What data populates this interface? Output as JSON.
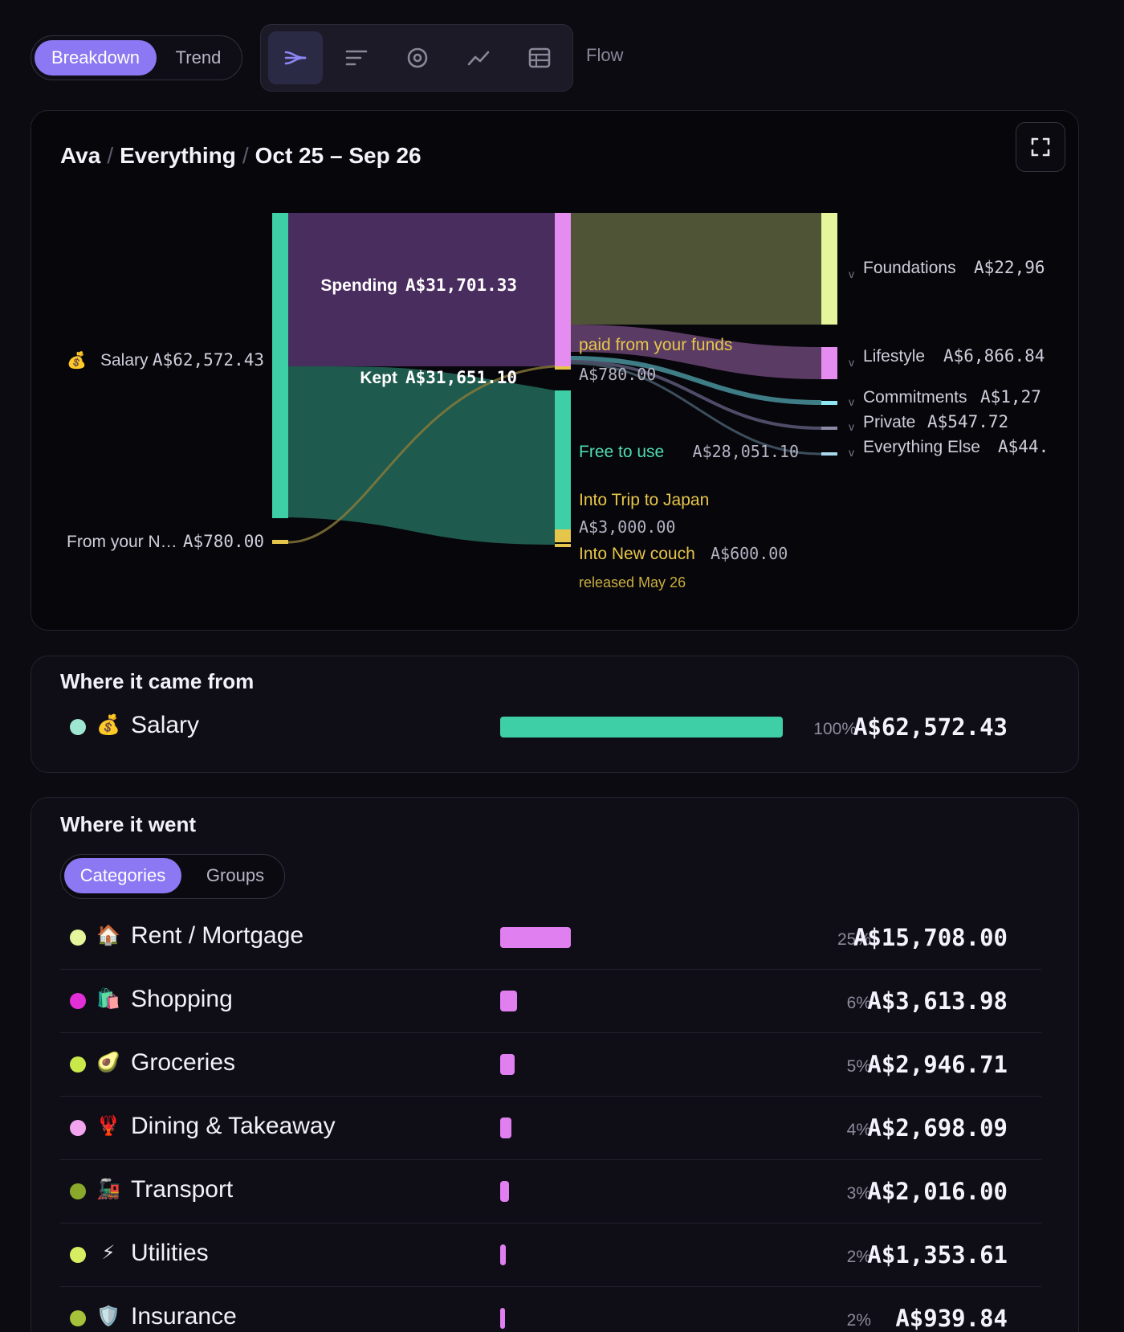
{
  "mode_toggle": {
    "breakdown": "Breakdown",
    "trend": "Trend"
  },
  "view_switcher": {
    "icons": [
      "flow-icon",
      "bars-icon",
      "donut-icon",
      "line-icon",
      "table-icon"
    ],
    "active_label": "Flow"
  },
  "flow_card": {
    "breadcrumb": {
      "person": "Ava",
      "scope": "Everything",
      "range": "Oct 25 – Sep 26"
    },
    "sources": [
      {
        "emoji": "💰",
        "name": "Salary",
        "amount": "A$62,572.43"
      },
      {
        "name": "From your N…",
        "amount": "A$780.00"
      }
    ],
    "middle": {
      "spending_label": "Spending",
      "spending_amount": "A$31,701.33",
      "kept_label": "Kept",
      "kept_amount": "A$31,651.10"
    },
    "right_notes": {
      "paid_from_funds": "paid from your funds",
      "paid_amount": "A$780.00",
      "free_label": "Free to use",
      "free_amount": "A$28,051.10",
      "trip_label": "Into Trip to Japan",
      "trip_amount": "A$3,000.00",
      "couch_label": "Into New couch",
      "couch_amount": "A$600.00",
      "couch_note": "released May 26"
    },
    "targets": [
      {
        "name": "Foundations",
        "amount": "A$22,96"
      },
      {
        "name": "Lifestyle",
        "amount": "A$6,866.84"
      },
      {
        "name": "Commitments",
        "amount": "A$1,27"
      },
      {
        "name": "Private",
        "amount": "A$547.72"
      },
      {
        "name": "Everything Else",
        "amount": "A$44."
      }
    ],
    "colors": {
      "income": "#3ecfa7",
      "spending": "#4a2d5f",
      "kept": "#1f5a4e",
      "foundations": "#e4f59b",
      "lifestyle": "#e58cf0",
      "commitments": "#8ee6f0",
      "private": "#8d8aa8",
      "other": "#a8d8ee",
      "fund": "#e6c64a"
    }
  },
  "came_from": {
    "title": "Where it came from",
    "rows": [
      {
        "emoji": "💰",
        "name": "Salary",
        "pct": "100%",
        "amount": "A$62,572.43",
        "share": 1.0,
        "dot": "#9ee6d0",
        "bar": "#3ecfa7"
      }
    ]
  },
  "went": {
    "title": "Where it went",
    "tabs": {
      "categories": "Categories",
      "groups": "Groups"
    },
    "rows": [
      {
        "emoji": "🏠",
        "name": "Rent / Mortgage",
        "pct": "25%",
        "amount": "A$15,708.00",
        "share": 0.25,
        "dot": "#e4f59b",
        "bar": "#df7ff0"
      },
      {
        "emoji": "🛍️",
        "name": "Shopping",
        "pct": "6%",
        "amount": "A$3,613.98",
        "share": 0.06,
        "dot": "#e22fd8",
        "bar": "#df7ff0"
      },
      {
        "emoji": "🥑",
        "name": "Groceries",
        "pct": "5%",
        "amount": "A$2,946.71",
        "share": 0.05,
        "dot": "#c9e84a",
        "bar": "#df7ff0"
      },
      {
        "emoji": "🦞",
        "name": "Dining & Takeaway",
        "pct": "4%",
        "amount": "A$2,698.09",
        "share": 0.04,
        "dot": "#f3a4ee",
        "bar": "#df7ff0"
      },
      {
        "emoji": "🚂",
        "name": "Transport",
        "pct": "3%",
        "amount": "A$2,016.00",
        "share": 0.03,
        "dot": "#8aa92a",
        "bar": "#df7ff0"
      },
      {
        "emoji": "⚡",
        "name": "Utilities",
        "pct": "2%",
        "amount": "A$1,353.61",
        "share": 0.02,
        "dot": "#d8ee62",
        "bar": "#df7ff0"
      },
      {
        "emoji": "🛡️",
        "name": "Insurance",
        "pct": "2%",
        "amount": "A$939.84",
        "share": 0.015,
        "dot": "#a6c23a",
        "bar": "#df7ff0"
      }
    ]
  }
}
